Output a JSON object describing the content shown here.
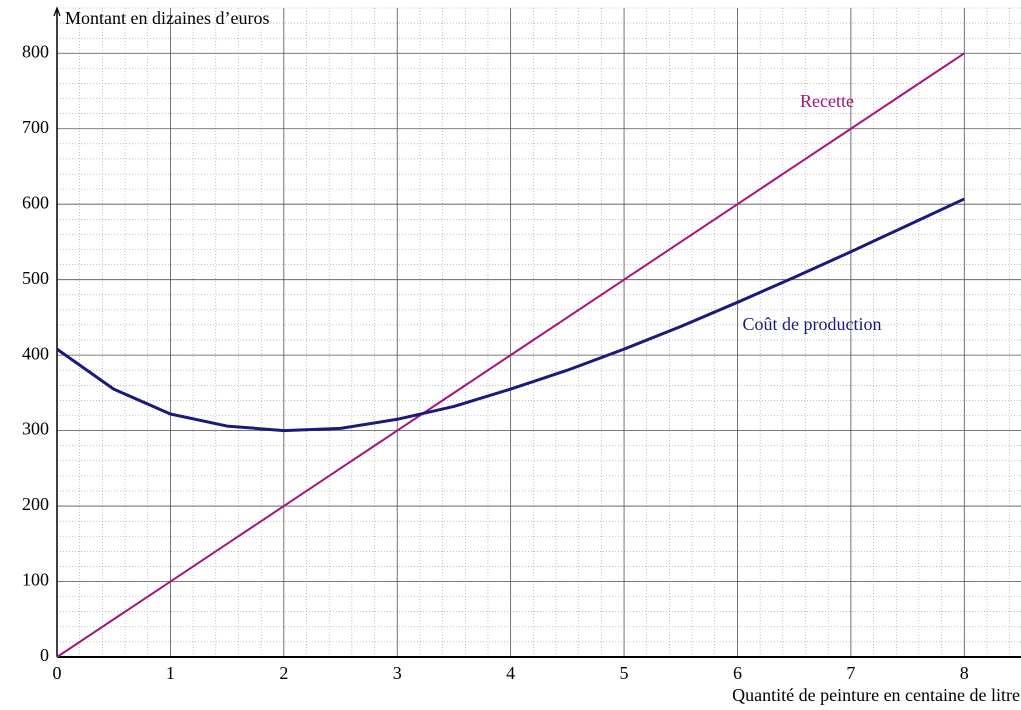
{
  "chart_data": {
    "type": "line",
    "y_axis_label": "Montant en dizaines d’euros",
    "x_axis_label": "Quantité de peinture en centaine de litre",
    "x": [
      0,
      0.5,
      1,
      1.5,
      2,
      2.5,
      3,
      3.5,
      4,
      4.5,
      5,
      5.5,
      6,
      6.5,
      7,
      7.5,
      8
    ],
    "series": [
      {
        "name": "Recette",
        "color": "#a0157f",
        "values": [
          0,
          50,
          100,
          150,
          200,
          250,
          300,
          350,
          400,
          450,
          500,
          550,
          600,
          650,
          700,
          750,
          800
        ]
      },
      {
        "name": "Coût de production",
        "color": "#1b1a7c",
        "values": [
          408,
          355,
          322,
          306,
          300,
          303,
          315,
          332,
          355,
          380,
          408,
          438,
          470,
          503,
          537,
          572,
          607
        ]
      }
    ],
    "xlim": [
      0,
      8.5
    ],
    "ylim": [
      0,
      860
    ],
    "xticks": [
      0,
      1,
      2,
      3,
      4,
      5,
      6,
      7,
      8
    ],
    "yticks": [
      0,
      100,
      200,
      300,
      400,
      500,
      600,
      700,
      800
    ],
    "grid": true,
    "minor_grid_divisions": 5
  }
}
